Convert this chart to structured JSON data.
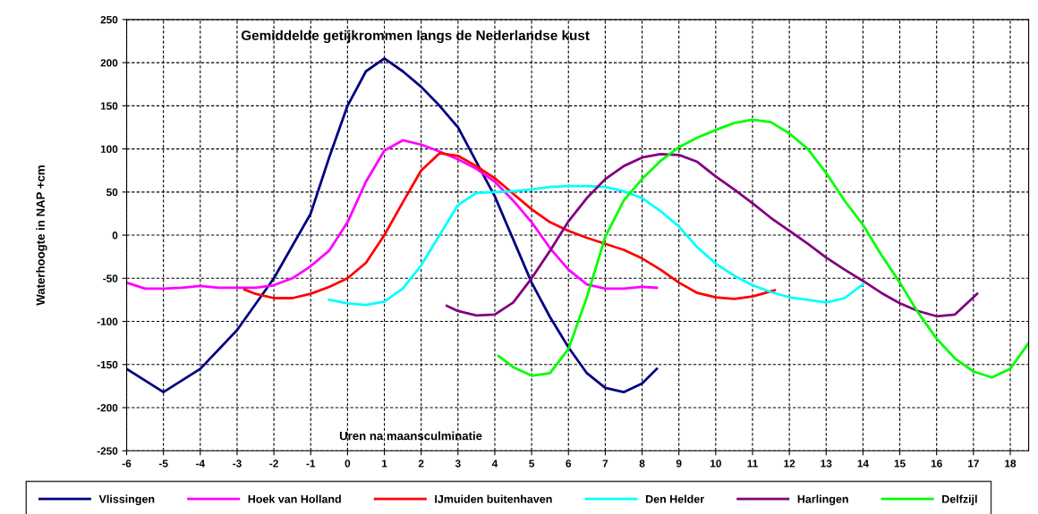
{
  "chart_data": {
    "type": "line",
    "title": "Gemiddelde getijkrommen langs de Nederlandse kust",
    "xlabel": "Uren na maansculminatie",
    "ylabel": "Waterhoogte in NAP +cm",
    "xlim": [
      -6,
      18.5
    ],
    "xticks": [
      -6,
      -5,
      -4,
      -3,
      -2,
      -1,
      0,
      1,
      2,
      3,
      4,
      5,
      6,
      7,
      8,
      9,
      10,
      11,
      12,
      13,
      14,
      15,
      16,
      17,
      18
    ],
    "ylim": [
      -250,
      250
    ],
    "yticks": [
      -250,
      -200,
      -150,
      -100,
      -50,
      0,
      50,
      100,
      150,
      200,
      250
    ],
    "grid": true,
    "legend": "bottom",
    "marker": "none",
    "line_style": "solid",
    "series": [
      {
        "name": "Vlissingen",
        "color": "#000080",
        "x": [
          -6,
          -5,
          -4,
          -3,
          -2,
          -1,
          -0.5,
          0,
          0.5,
          1,
          1.5,
          2,
          2.5,
          3,
          3.5,
          4,
          4.5,
          5,
          5.5,
          6,
          6.5,
          7,
          7.5,
          8,
          8.4
        ],
        "values": [
          -155,
          -182,
          -155,
          -110,
          -50,
          25,
          90,
          150,
          190,
          205,
          190,
          172,
          150,
          125,
          85,
          45,
          -5,
          -55,
          -95,
          -130,
          -160,
          -177,
          -182,
          -172,
          -155
        ]
      },
      {
        "name": "Hoek van Holland",
        "color": "#ff00ff",
        "x": [
          -6,
          -5.5,
          -5,
          -4.5,
          -4,
          -3.5,
          -3,
          -2.5,
          -2,
          -1.5,
          -1,
          -0.5,
          0,
          0.5,
          1,
          1.5,
          2,
          2.5,
          3,
          3.5,
          4,
          4.5,
          5,
          5.5,
          6,
          6.5,
          7,
          7.5,
          8,
          8.4
        ],
        "values": [
          -55,
          -62,
          -62,
          -61,
          -59,
          -61,
          -61,
          -61,
          -58,
          -50,
          -36,
          -18,
          15,
          62,
          98,
          110,
          105,
          97,
          88,
          77,
          62,
          40,
          15,
          -15,
          -40,
          -57,
          -62,
          -62,
          -60,
          -61
        ]
      },
      {
        "name": "IJmuiden buitenhaven",
        "color": "#ff0000",
        "x": [
          -2.8,
          -2.5,
          -2,
          -1.5,
          -1,
          -0.5,
          0,
          0.5,
          1,
          1.5,
          2,
          2.5,
          3,
          3.5,
          4,
          4.5,
          5,
          5.5,
          6,
          6.5,
          7,
          7.5,
          8,
          8.5,
          9,
          9.5,
          10,
          10.5,
          11,
          11.6
        ],
        "values": [
          -63,
          -68,
          -73,
          -73,
          -68,
          -60,
          -50,
          -32,
          0,
          38,
          75,
          95,
          92,
          80,
          66,
          48,
          30,
          15,
          5,
          -3,
          -10,
          -17,
          -27,
          -40,
          -55,
          -67,
          -72,
          -74,
          -71,
          -64
        ]
      },
      {
        "name": "Den Helder",
        "color": "#00ffff",
        "x": [
          -0.5,
          0,
          0.5,
          1,
          1.5,
          2,
          2.5,
          3,
          3.5,
          4,
          4.5,
          5,
          5.5,
          6,
          6.5,
          7,
          7.5,
          8,
          8.5,
          9,
          9.5,
          10,
          10.5,
          11,
          11.5,
          12,
          12.5,
          13,
          13.5,
          14
        ],
        "values": [
          -75,
          -79,
          -81,
          -77,
          -62,
          -35,
          0,
          35,
          49,
          50,
          51,
          53,
          56,
          57,
          57,
          56,
          51,
          43,
          28,
          10,
          -14,
          -33,
          -47,
          -58,
          -66,
          -72,
          -75,
          -78,
          -73,
          -57
        ]
      },
      {
        "name": "Harlingen",
        "color": "#800080",
        "x": [
          2.7,
          3,
          3.5,
          4,
          4.5,
          5,
          5.5,
          6,
          6.5,
          7,
          7.5,
          8,
          8.5,
          9,
          9.5,
          10,
          10.5,
          11,
          11.5,
          12,
          12.5,
          13,
          13.5,
          14,
          14.5,
          15,
          15.5,
          16,
          16.5,
          17.1
        ],
        "values": [
          -82,
          -88,
          -93,
          -92,
          -78,
          -50,
          -18,
          16,
          43,
          65,
          80,
          90,
          94,
          93,
          85,
          68,
          53,
          37,
          20,
          5,
          -10,
          -26,
          -40,
          -53,
          -67,
          -79,
          -88,
          -94,
          -92,
          -68
        ]
      },
      {
        "name": "Delfzijl",
        "color": "#00ff00",
        "x": [
          4.1,
          4.5,
          5,
          5.5,
          6,
          6.5,
          7,
          7.5,
          8,
          8.5,
          9,
          9.5,
          10,
          10.5,
          11,
          11.5,
          12,
          12.5,
          13,
          13.5,
          14,
          14.5,
          15,
          15.5,
          16,
          16.5,
          17,
          17.5,
          18,
          18.5
        ],
        "values": [
          -140,
          -153,
          -163,
          -160,
          -132,
          -72,
          -2,
          40,
          65,
          86,
          102,
          113,
          122,
          130,
          134,
          131,
          118,
          100,
          72,
          40,
          12,
          -23,
          -55,
          -90,
          -120,
          -143,
          -158,
          -165,
          -155,
          -125
        ]
      }
    ]
  }
}
